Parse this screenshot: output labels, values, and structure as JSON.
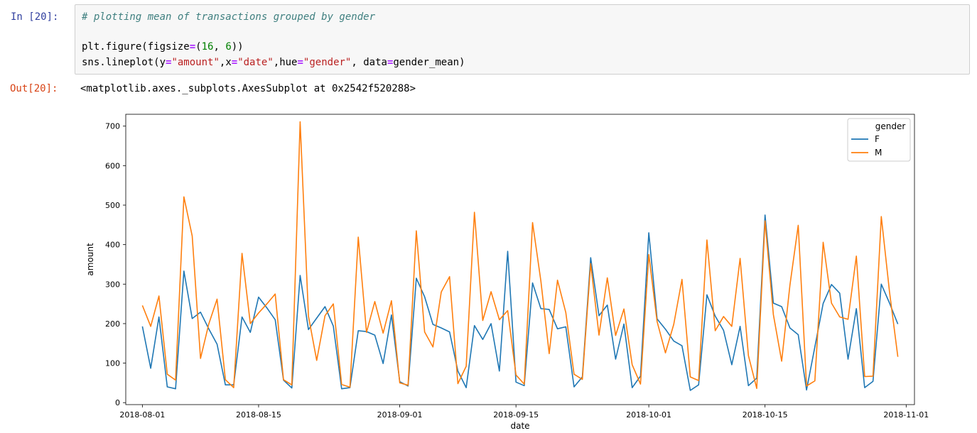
{
  "cell_in": {
    "prompt": "In [20]:",
    "line1": "# plotting mean of transactions grouped by gender",
    "line2": [
      {
        "t": "plt.figure(figsize",
        "c": ""
      },
      {
        "t": "=",
        "c": "op"
      },
      {
        "t": "(",
        "c": ""
      },
      {
        "t": "16",
        "c": "num"
      },
      {
        "t": ", ",
        "c": ""
      },
      {
        "t": "6",
        "c": "num"
      },
      {
        "t": "))",
        "c": ""
      }
    ],
    "line3": [
      {
        "t": "sns.lineplot(y",
        "c": ""
      },
      {
        "t": "=",
        "c": "op"
      },
      {
        "t": "\"amount\"",
        "c": "str"
      },
      {
        "t": ",x",
        "c": ""
      },
      {
        "t": "=",
        "c": "op"
      },
      {
        "t": "\"date\"",
        "c": "str"
      },
      {
        "t": ",hue",
        "c": ""
      },
      {
        "t": "=",
        "c": "op"
      },
      {
        "t": "\"gender\"",
        "c": "str"
      },
      {
        "t": ", data",
        "c": ""
      },
      {
        "t": "=",
        "c": "op"
      },
      {
        "t": "gender_mean)",
        "c": ""
      }
    ]
  },
  "cell_out": {
    "prompt": "Out[20]:",
    "text": "<matplotlib.axes._subplots.AxesSubplot at 0x2542f520288>"
  },
  "chart_data": {
    "type": "line",
    "x_start": "2018-08-01",
    "x_step_days": 1,
    "xlabel": "date",
    "ylabel": "amount",
    "xlim": [
      "2018-07-30",
      "2018-11-02"
    ],
    "ylim": [
      -5,
      730
    ],
    "x_ticks": [
      "2018-08-01",
      "2018-08-15",
      "2018-09-01",
      "2018-09-15",
      "2018-10-01",
      "2018-10-15",
      "2018-11-01"
    ],
    "y_ticks": [
      0,
      100,
      200,
      300,
      400,
      500,
      600,
      700
    ],
    "legend": {
      "title": "gender",
      "position": "top-right"
    },
    "grid": false,
    "series": [
      {
        "name": "F",
        "color": "#1f77b4",
        "values": [
          193,
          87,
          217,
          40,
          35,
          333,
          213,
          229,
          187,
          148,
          45,
          45,
          217,
          178,
          267,
          240,
          210,
          57,
          37,
          322,
          185,
          214,
          243,
          194,
          35,
          38,
          182,
          180,
          171,
          99,
          222,
          53,
          42,
          315,
          268,
          198,
          189,
          179,
          80,
          38,
          195,
          160,
          200,
          80,
          383,
          52,
          43,
          303,
          238,
          236,
          187,
          192,
          40,
          65,
          367,
          220,
          247,
          110,
          199,
          38,
          67,
          430,
          212,
          186,
          156,
          144,
          31,
          45,
          273,
          219,
          183,
          96,
          193,
          43,
          62,
          475,
          252,
          243,
          189,
          172,
          32,
          141,
          251,
          299,
          277,
          110,
          238,
          38,
          54,
          300,
          252,
          199
        ]
      },
      {
        "name": "M",
        "color": "#ff7f0e",
        "values": [
          246,
          193,
          270,
          72,
          57,
          521,
          422,
          112,
          199,
          262,
          58,
          38,
          378,
          200,
          227,
          250,
          275,
          58,
          45,
          711,
          219,
          107,
          220,
          250,
          46,
          39,
          419,
          178,
          256,
          176,
          258,
          50,
          44,
          435,
          179,
          141,
          280,
          319,
          48,
          92,
          482,
          208,
          281,
          210,
          233,
          70,
          47,
          456,
          308,
          124,
          310,
          228,
          72,
          59,
          352,
          171,
          316,
          170,
          237,
          96,
          47,
          375,
          205,
          126,
          198,
          312,
          65,
          56,
          412,
          182,
          218,
          193,
          365,
          119,
          36,
          460,
          223,
          105,
          297,
          449,
          42,
          55,
          406,
          252,
          217,
          211,
          371,
          66,
          67,
          471,
          280,
          116
        ]
      }
    ]
  }
}
